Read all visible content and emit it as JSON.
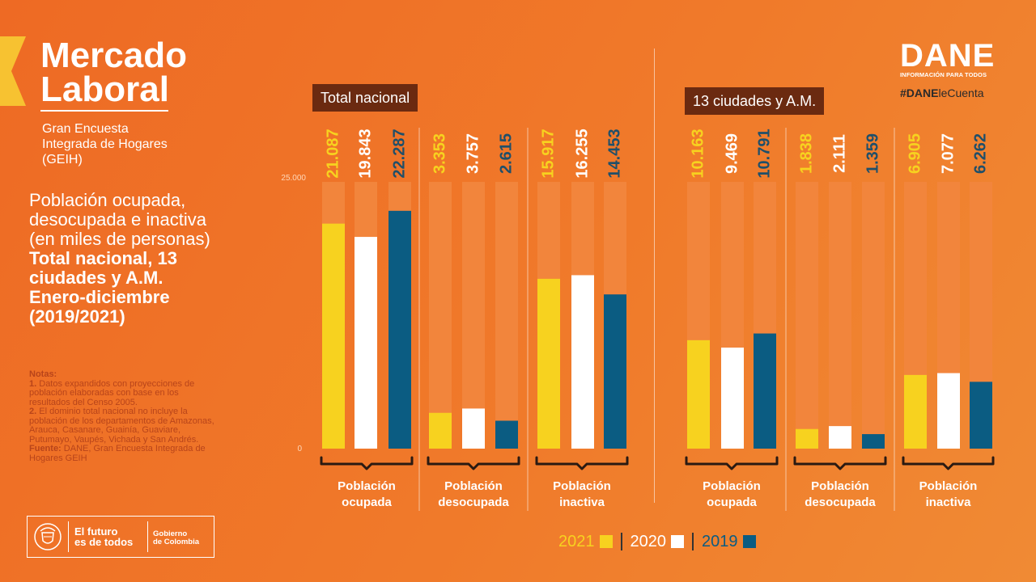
{
  "header": {
    "title_line1": "Mercado",
    "title_line2": "Laboral",
    "subtitle": "Gran Encuesta Integrada de Hogares (GEIH)"
  },
  "description": {
    "line1": "Población ocupada,",
    "line2": "desocupada e inactiva",
    "line3": "(en miles de personas)",
    "bold1": "Total nacional, 13",
    "bold2": "ciudades y A.M.",
    "bold3": "Enero-diciembre",
    "bold4": "(2019/2021)"
  },
  "notes": {
    "heading": "Notas:",
    "n1_num": "1.",
    "n1_text": "Datos expandidos con proyecciones de población elaboradas con base en los resultados del Censo 2005.",
    "n2_num": "2.",
    "n2_text": "El dominio total nacional no incluye la población de los departamentos de Amazonas, Arauca, Casanare, Guainía, Guaviare, Putumayo, Vaupés, Vichada y San Andrés.",
    "source_label": "Fuente:",
    "source_text": "DANE, Gran Encuesta Integrada de Hogares GEIH"
  },
  "government": {
    "slogan_line1": "El futuro",
    "slogan_line2": "es de todos",
    "gov_line1": "Gobierno",
    "gov_line2": "de Colombia"
  },
  "brand": {
    "logo": "DANE",
    "tagline": "INFORMACIÓN PARA TODOS",
    "hashtag_bold": "#DANE",
    "hashtag_rest": "leCuenta"
  },
  "sections": {
    "national": "Total nacional",
    "cities": "13 ciudades y A.M."
  },
  "legend": [
    {
      "label": "2021",
      "color": "#f7d21f"
    },
    {
      "label": "2020",
      "color": "#ffffff"
    },
    {
      "label": "2019",
      "color": "#0b5c82"
    }
  ],
  "colors": {
    "y2021": "#f7d21f",
    "y2020": "#ffffff",
    "y2019": "#0b5c82",
    "track": "#f2853c",
    "value2021": "#f7d21f",
    "value2020": "#ffffff",
    "value2019": "#1f4f6a"
  },
  "chart_data": [
    {
      "type": "bar",
      "title": "Total nacional",
      "categories": [
        "Población ocupada",
        "Población desocupada",
        "Población inactiva"
      ],
      "series": [
        {
          "name": "2021",
          "values": [
            21087,
            3353,
            15917
          ],
          "labels": [
            "21.087",
            "3.353",
            "15.917"
          ]
        },
        {
          "name": "2020",
          "values": [
            19843,
            3757,
            16255
          ],
          "labels": [
            "19.843",
            "3.757",
            "16.255"
          ]
        },
        {
          "name": "2019",
          "values": [
            22287,
            2615,
            14453
          ],
          "labels": [
            "22.287",
            "2.615",
            "14.453"
          ]
        }
      ],
      "ylim": [
        0,
        25000
      ],
      "yticks": [
        "0",
        "25.000"
      ]
    },
    {
      "type": "bar",
      "title": "13 ciudades y A.M.",
      "categories": [
        "Población ocupada",
        "Población desocupada",
        "Población inactiva"
      ],
      "series": [
        {
          "name": "2021",
          "values": [
            10163,
            1838,
            6905
          ],
          "labels": [
            "10.163",
            "1.838",
            "6.905"
          ]
        },
        {
          "name": "2020",
          "values": [
            9469,
            2111,
            7077
          ],
          "labels": [
            "9.469",
            "2.111",
            "7.077"
          ]
        },
        {
          "name": "2019",
          "values": [
            10791,
            1359,
            6262
          ],
          "labels": [
            "10.791",
            "1.359",
            "6.262"
          ]
        }
      ],
      "ylim": [
        0,
        25000
      ]
    }
  ]
}
